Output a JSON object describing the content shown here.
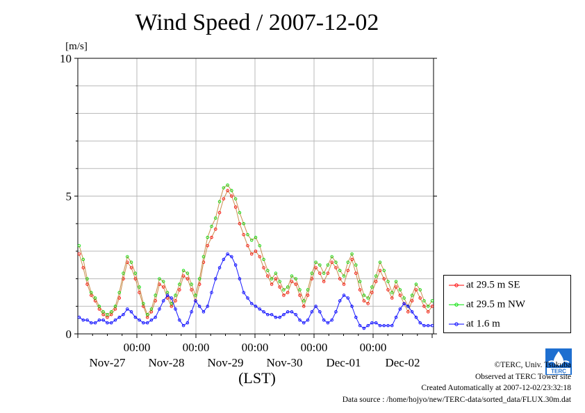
{
  "chart_data": {
    "type": "line",
    "title": "Wind Speed / 2007-12-02",
    "unit_label": "[m/s]",
    "xlabel": "(LST)",
    "ylim": [
      0,
      10
    ],
    "xlim": [
      "2007-11-26 15:00",
      "2007-12-02 23:00"
    ],
    "yticks": [
      0,
      5,
      10
    ],
    "x_tick_labels": [
      "00:00",
      "00:00",
      "00:00",
      "00:00",
      "00:00"
    ],
    "x_day_labels": [
      "Nov-27",
      "Nov-28",
      "Nov-29",
      "Nov-30",
      "Dec-01",
      "Dec-02"
    ],
    "grid": true,
    "legend_position": "bottom-right, outside plot",
    "series": [
      {
        "name": "at 29.5 m SE",
        "color": "#ff0000",
        "values": [
          2.9,
          2.4,
          1.8,
          1.4,
          1.2,
          0.9,
          0.7,
          0.6,
          0.7,
          0.9,
          1.3,
          2.0,
          2.6,
          2.4,
          2.0,
          1.5,
          1.0,
          0.6,
          0.8,
          1.2,
          1.8,
          1.7,
          1.3,
          1.0,
          1.2,
          1.6,
          2.1,
          2.0,
          1.6,
          1.2,
          1.8,
          2.6,
          3.2,
          3.5,
          3.8,
          4.4,
          4.9,
          5.2,
          5.0,
          4.6,
          4.0,
          3.6,
          3.2,
          2.9,
          3.0,
          2.8,
          2.4,
          2.1,
          1.8,
          2.0,
          1.7,
          1.4,
          1.5,
          1.9,
          1.8,
          1.4,
          1.0,
          1.4,
          2.0,
          2.4,
          2.2,
          1.9,
          2.2,
          2.6,
          2.4,
          2.0,
          1.8,
          2.3,
          2.7,
          2.2,
          1.6,
          1.2,
          1.1,
          1.5,
          1.9,
          2.3,
          2.0,
          1.6,
          1.3,
          1.7,
          1.4,
          1.1,
          0.8,
          1.2,
          1.6,
          1.3,
          1.0,
          0.8,
          1.0
        ]
      },
      {
        "name": "at 29.5 m NW",
        "color": "#00e000",
        "values": [
          3.2,
          2.7,
          2.0,
          1.5,
          1.3,
          1.0,
          0.8,
          0.7,
          0.8,
          1.0,
          1.5,
          2.2,
          2.8,
          2.6,
          2.2,
          1.7,
          1.1,
          0.7,
          0.9,
          1.4,
          2.0,
          1.9,
          1.5,
          1.1,
          1.4,
          1.8,
          2.3,
          2.2,
          1.8,
          1.4,
          2.0,
          2.8,
          3.5,
          3.9,
          4.2,
          4.8,
          5.3,
          5.4,
          5.2,
          4.9,
          4.4,
          4.0,
          3.6,
          3.4,
          3.5,
          3.2,
          2.7,
          2.3,
          2.0,
          2.2,
          1.9,
          1.6,
          1.7,
          2.1,
          2.0,
          1.6,
          1.2,
          1.6,
          2.2,
          2.6,
          2.5,
          2.2,
          2.5,
          2.8,
          2.6,
          2.3,
          2.1,
          2.6,
          2.9,
          2.5,
          1.9,
          1.4,
          1.3,
          1.7,
          2.1,
          2.6,
          2.3,
          1.9,
          1.5,
          1.9,
          1.6,
          1.3,
          1.0,
          1.4,
          1.8,
          1.6,
          1.2,
          1.0,
          1.2
        ]
      },
      {
        "name": "at 1.6 m",
        "color": "#0000ff",
        "values": [
          0.6,
          0.5,
          0.5,
          0.4,
          0.4,
          0.5,
          0.5,
          0.4,
          0.4,
          0.5,
          0.6,
          0.7,
          0.9,
          0.8,
          0.6,
          0.5,
          0.4,
          0.4,
          0.5,
          0.6,
          0.9,
          1.2,
          1.4,
          1.3,
          0.9,
          0.5,
          0.3,
          0.4,
          0.8,
          1.2,
          1.0,
          0.8,
          1.0,
          1.5,
          2.0,
          2.4,
          2.7,
          2.9,
          2.8,
          2.5,
          2.0,
          1.5,
          1.3,
          1.1,
          1.0,
          0.9,
          0.8,
          0.7,
          0.7,
          0.6,
          0.6,
          0.7,
          0.8,
          0.8,
          0.7,
          0.5,
          0.4,
          0.5,
          0.8,
          1.0,
          0.8,
          0.5,
          0.4,
          0.5,
          0.8,
          1.2,
          1.4,
          1.3,
          1.0,
          0.6,
          0.3,
          0.2,
          0.3,
          0.4,
          0.4,
          0.3,
          0.3,
          0.3,
          0.3,
          0.6,
          0.9,
          1.1,
          1.0,
          0.8,
          0.6,
          0.4,
          0.3,
          0.3,
          0.3
        ]
      }
    ]
  },
  "credits": {
    "copyright": "©TERC, Univ. Tsukuba",
    "observed": "Observed at TERC Tower site",
    "created": "Created Automatically at 2007-12-02/23:32:18",
    "source": "Data source : /home/hojyo/new/TERC-data/sorted_data/FLUX.30m.dat"
  },
  "logo": {
    "text": "TERC"
  }
}
